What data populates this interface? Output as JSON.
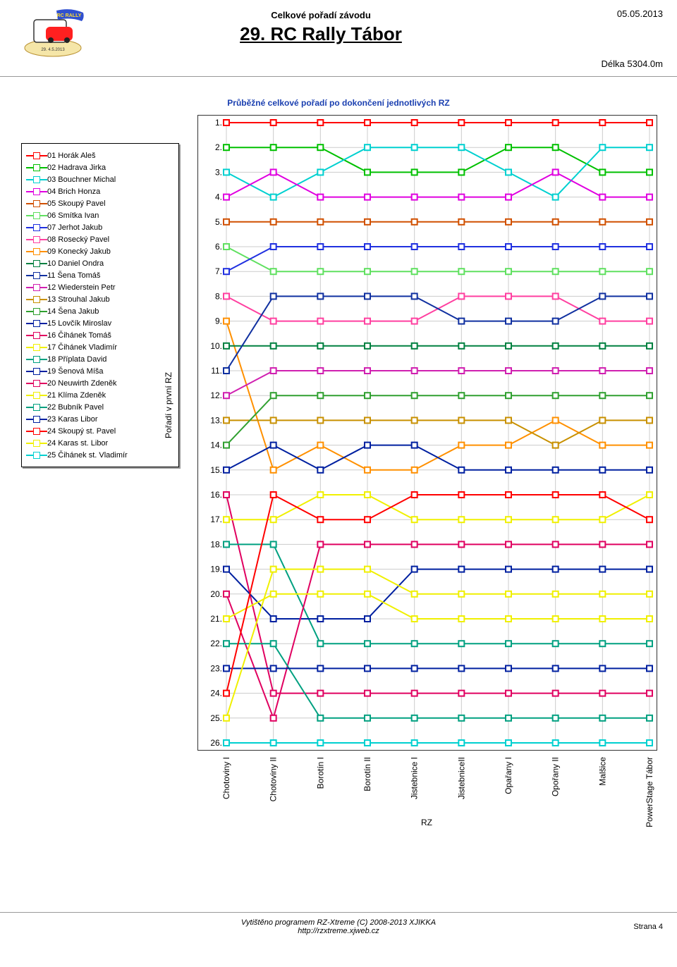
{
  "header": {
    "date": "05.05.2013",
    "subtitle": "Celkové pořadí závodu",
    "title": "29. RC Rally Tábor",
    "length_label": "Délka 5304.0m"
  },
  "chart": {
    "title": "Průběžné celkové pořadí po dokončení jednotlivých RZ",
    "y_axis_title": "Pořadí v první RZ",
    "x_axis_title": "RZ",
    "y_labels": [
      "1.",
      "2.",
      "3.",
      "4.",
      "5.",
      "6.",
      "7.",
      "8.",
      "9.",
      "10.",
      "11.",
      "12.",
      "13.",
      "14.",
      "15.",
      "16.",
      "17.",
      "18.",
      "19.",
      "20.",
      "21.",
      "22.",
      "23.",
      "24.",
      "25.",
      "26."
    ],
    "x_labels": [
      "Chotoviny I",
      "Chotoviny II",
      "Borotín I",
      "Borotín II",
      "Jistebnice I",
      "JistebniceII",
      "Opařany I",
      "Opořany II",
      "Malšice",
      "PowerStage Tábor"
    ],
    "colors": {
      "red": "#ff0000",
      "green": "#00c000",
      "cyan": "#00d0d0",
      "magenta": "#e000e0",
      "dorange": "#d05000",
      "lime": "#60e060",
      "blue": "#2030e0",
      "pink": "#ff40a0",
      "orange": "#ff9000",
      "dgreen": "#008040",
      "navy": "#1030a0",
      "fuchsia": "#d020b0",
      "gold": "#c89000",
      "green2": "#30a030",
      "dblue": "#0020a0",
      "dpink": "#e00060",
      "yellow": "#f0f000",
      "teal": "#00a080"
    },
    "series": [
      {
        "name": "01 Horák Aleš",
        "line": "red",
        "marker": "red",
        "pos": [
          1,
          1,
          1,
          1,
          1,
          1,
          1,
          1,
          1,
          1
        ]
      },
      {
        "name": "02 Hadrava Jirka",
        "line": "green",
        "marker": "green",
        "pos": [
          2,
          2,
          2,
          3,
          3,
          3,
          2,
          2,
          3,
          3
        ]
      },
      {
        "name": "03 Bouchner Michal",
        "line": "cyan",
        "marker": "cyan",
        "pos": [
          3,
          4,
          3,
          2,
          2,
          2,
          3,
          4,
          2,
          2
        ]
      },
      {
        "name": "04 Brich Honza",
        "line": "magenta",
        "marker": "magenta",
        "pos": [
          4,
          3,
          4,
          4,
          4,
          4,
          4,
          3,
          4,
          4
        ]
      },
      {
        "name": "05 Skoupý Pavel",
        "line": "dorange",
        "marker": "dorange",
        "pos": [
          5,
          5,
          5,
          5,
          5,
          5,
          5,
          5,
          5,
          5
        ]
      },
      {
        "name": "06 Smítka Ivan",
        "line": "lime",
        "marker": "lime",
        "pos": [
          6,
          7,
          7,
          7,
          7,
          7,
          7,
          7,
          7,
          7
        ]
      },
      {
        "name": "07 Jerhot Jakub",
        "line": "blue",
        "marker": "blue",
        "pos": [
          7,
          6,
          6,
          6,
          6,
          6,
          6,
          6,
          6,
          6
        ]
      },
      {
        "name": "08 Rosecký Pavel",
        "line": "pink",
        "marker": "pink",
        "pos": [
          8,
          9,
          9,
          9,
          9,
          8,
          8,
          8,
          9,
          9
        ]
      },
      {
        "name": "09 Konecký Jakub",
        "line": "orange",
        "marker": "orange",
        "pos": [
          9,
          15,
          14,
          15,
          15,
          14,
          14,
          13,
          14,
          14
        ]
      },
      {
        "name": "10 Daniel Ondra",
        "line": "dgreen",
        "marker": "dgreen",
        "pos": [
          10,
          10,
          10,
          10,
          10,
          10,
          10,
          10,
          10,
          10
        ]
      },
      {
        "name": "11 Šena Tomáš",
        "line": "navy",
        "marker": "navy",
        "pos": [
          11,
          8,
          8,
          8,
          8,
          9,
          9,
          9,
          8,
          8
        ]
      },
      {
        "name": "12 Wiederstein Petr",
        "line": "fuchsia",
        "marker": "fuchsia",
        "pos": [
          12,
          11,
          11,
          11,
          11,
          11,
          11,
          11,
          11,
          11
        ]
      },
      {
        "name": "13 Strouhal Jakub",
        "line": "gold",
        "marker": "gold",
        "pos": [
          13,
          13,
          13,
          13,
          13,
          13,
          13,
          14,
          13,
          13
        ]
      },
      {
        "name": "14 Šena Jakub",
        "line": "green2",
        "marker": "green2",
        "pos": [
          14,
          12,
          12,
          12,
          12,
          12,
          12,
          12,
          12,
          12
        ]
      },
      {
        "name": "15 Lovčík Miroslav",
        "line": "dblue",
        "marker": "dblue",
        "pos": [
          15,
          14,
          15,
          14,
          14,
          15,
          15,
          15,
          15,
          15
        ]
      },
      {
        "name": "16 Čihánek Tomáš",
        "line": "dpink",
        "marker": "dpink",
        "pos": [
          16,
          24,
          24,
          24,
          24,
          24,
          24,
          24,
          24,
          24
        ]
      },
      {
        "name": "17 Čihánek Vladimír",
        "line": "yellow",
        "marker": "yellow",
        "pos": [
          17,
          17,
          16,
          16,
          17,
          17,
          17,
          17,
          17,
          16
        ]
      },
      {
        "name": "18 Příplata David",
        "line": "teal",
        "marker": "teal",
        "pos": [
          18,
          18,
          22,
          22,
          22,
          22,
          22,
          22,
          22,
          22
        ]
      },
      {
        "name": "19 Šenová Míša",
        "line": "dblue",
        "marker": "dblue",
        "pos": [
          19,
          21,
          21,
          21,
          19,
          19,
          19,
          19,
          19,
          19
        ]
      },
      {
        "name": "20 Neuwirth Zdeněk",
        "line": "dpink",
        "marker": "dpink",
        "pos": [
          20,
          25,
          18,
          18,
          18,
          18,
          18,
          18,
          18,
          18
        ]
      },
      {
        "name": "21 Klíma Zdeněk",
        "line": "yellow",
        "marker": "yellow",
        "pos": [
          21,
          20,
          20,
          20,
          21,
          21,
          21,
          21,
          21,
          21
        ]
      },
      {
        "name": "22 Bubník Pavel",
        "line": "teal",
        "marker": "teal",
        "pos": [
          22,
          22,
          25,
          25,
          25,
          25,
          25,
          25,
          25,
          25
        ]
      },
      {
        "name": "23 Karas Libor",
        "line": "dblue",
        "marker": "dblue",
        "pos": [
          23,
          23,
          23,
          23,
          23,
          23,
          23,
          23,
          23,
          23
        ]
      },
      {
        "name": "24 Skoupý st. Pavel",
        "line": "red",
        "marker": "red",
        "pos": [
          24,
          16,
          17,
          17,
          16,
          16,
          16,
          16,
          16,
          17
        ]
      },
      {
        "name": "24 Karas st. Libor",
        "line": "yellow",
        "marker": "yellow",
        "pos": [
          25,
          19,
          19,
          19,
          20,
          20,
          20,
          20,
          20,
          20
        ]
      },
      {
        "name": "25 Čihánek st. Vladimír",
        "line": "cyan",
        "marker": "cyan",
        "pos": [
          26,
          26,
          26,
          26,
          26,
          26,
          26,
          26,
          26,
          26
        ]
      }
    ]
  },
  "footer": {
    "program": "Vytištěno programem RZ-Xtreme (C) 2008-2013  XJIKKA",
    "url": "http://rzxtreme.xjweb.cz",
    "page": "Strana 4"
  }
}
